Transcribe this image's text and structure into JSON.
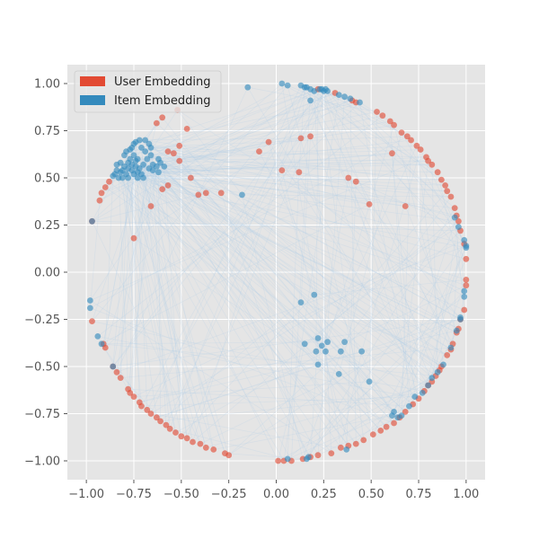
{
  "chart_data": {
    "type": "scatter",
    "title": "",
    "xlabel": "",
    "ylabel": "",
    "xlim": [
      -1.1,
      1.1
    ],
    "ylim": [
      -1.1,
      1.1
    ],
    "grid": true,
    "legend_position": "top-left",
    "x_ticks": [
      "−1.00",
      "−0.75",
      "−0.50",
      "−0.25",
      "0.00",
      "0.25",
      "0.50",
      "0.75",
      "1.00"
    ],
    "y_ticks": [
      "1.00",
      "0.75",
      "0.50",
      "0.25",
      "0.00",
      "−0.25",
      "−0.50",
      "−0.75",
      "−1.00"
    ],
    "x_tick_values": [
      -1.0,
      -0.75,
      -0.5,
      -0.25,
      0.0,
      0.25,
      0.5,
      0.75,
      1.0
    ],
    "y_tick_values": [
      1.0,
      0.75,
      0.5,
      0.25,
      0.0,
      -0.25,
      -0.5,
      -0.75,
      -1.0
    ],
    "colors": {
      "user": "#E24A33",
      "item": "#348ABD",
      "plot_bg": "#E5E5E5",
      "grid": "#FFFFFF",
      "link": "#AFCFE9"
    },
    "series": [
      {
        "name": "User Embedding",
        "points": [
          [
            -0.97,
            0.27
          ],
          [
            -0.92,
            0.42
          ],
          [
            -0.9,
            0.45
          ],
          [
            -0.88,
            0.48
          ],
          [
            -0.93,
            0.38
          ],
          [
            -0.75,
            0.18
          ],
          [
            -0.66,
            0.35
          ],
          [
            -0.6,
            0.44
          ],
          [
            -0.57,
            0.46
          ],
          [
            -0.51,
            0.59
          ],
          [
            -0.54,
            0.63
          ],
          [
            -0.57,
            0.64
          ],
          [
            -0.51,
            0.67
          ],
          [
            -0.6,
            0.82
          ],
          [
            -0.63,
            0.79
          ],
          [
            -0.52,
            0.86
          ],
          [
            -0.47,
            0.76
          ],
          [
            -0.45,
            0.5
          ],
          [
            -0.41,
            0.41
          ],
          [
            -0.37,
            0.42
          ],
          [
            -0.29,
            0.42
          ],
          [
            -0.09,
            0.64
          ],
          [
            -0.04,
            0.69
          ],
          [
            0.03,
            0.54
          ],
          [
            0.12,
            0.53
          ],
          [
            0.13,
            0.71
          ],
          [
            0.18,
            0.72
          ],
          [
            0.38,
            0.5
          ],
          [
            0.42,
            0.48
          ],
          [
            0.49,
            0.36
          ],
          [
            0.61,
            0.63
          ],
          [
            0.68,
            0.35
          ],
          [
            0.42,
            0.9
          ],
          [
            0.4,
            0.91
          ],
          [
            0.31,
            0.95
          ],
          [
            0.22,
            0.97
          ],
          [
            0.53,
            0.85
          ],
          [
            0.56,
            0.83
          ],
          [
            0.6,
            0.8
          ],
          [
            0.62,
            0.78
          ],
          [
            0.66,
            0.74
          ],
          [
            0.69,
            0.72
          ],
          [
            0.71,
            0.7
          ],
          [
            0.74,
            0.67
          ],
          [
            0.76,
            0.65
          ],
          [
            0.79,
            0.61
          ],
          [
            0.8,
            0.59
          ],
          [
            0.82,
            0.57
          ],
          [
            0.85,
            0.53
          ],
          [
            0.87,
            0.49
          ],
          [
            0.89,
            0.46
          ],
          [
            0.9,
            0.43
          ],
          [
            0.92,
            0.4
          ],
          [
            0.94,
            0.34
          ],
          [
            0.95,
            0.3
          ],
          [
            0.96,
            0.27
          ],
          [
            0.97,
            0.22
          ],
          [
            0.99,
            0.15
          ],
          [
            1.0,
            0.07
          ],
          [
            1.0,
            -0.04
          ],
          [
            1.0,
            -0.07
          ],
          [
            0.99,
            -0.2
          ],
          [
            0.97,
            -0.25
          ],
          [
            0.96,
            -0.3
          ],
          [
            0.95,
            -0.32
          ],
          [
            0.93,
            -0.38
          ],
          [
            0.92,
            -0.41
          ],
          [
            0.9,
            -0.44
          ],
          [
            0.87,
            -0.5
          ],
          [
            0.86,
            -0.52
          ],
          [
            0.84,
            -0.55
          ],
          [
            0.82,
            -0.58
          ],
          [
            0.8,
            -0.6
          ],
          [
            0.78,
            -0.63
          ],
          [
            0.75,
            -0.67
          ],
          [
            0.72,
            -0.7
          ],
          [
            0.68,
            -0.74
          ],
          [
            0.65,
            -0.77
          ],
          [
            0.62,
            -0.8
          ],
          [
            0.58,
            -0.82
          ],
          [
            0.55,
            -0.84
          ],
          [
            0.51,
            -0.86
          ],
          [
            0.46,
            -0.89
          ],
          [
            0.42,
            -0.91
          ],
          [
            0.38,
            -0.92
          ],
          [
            0.34,
            -0.93
          ],
          [
            0.29,
            -0.96
          ],
          [
            0.22,
            -0.97
          ],
          [
            0.18,
            -0.98
          ],
          [
            0.14,
            -0.99
          ],
          [
            0.08,
            -1.0
          ],
          [
            0.04,
            -1.0
          ],
          [
            0.01,
            -1.0
          ],
          [
            -0.25,
            -0.97
          ],
          [
            -0.27,
            -0.96
          ],
          [
            -0.33,
            -0.94
          ],
          [
            -0.37,
            -0.93
          ],
          [
            -0.4,
            -0.91
          ],
          [
            -0.44,
            -0.9
          ],
          [
            -0.47,
            -0.88
          ],
          [
            -0.5,
            -0.87
          ],
          [
            -0.53,
            -0.85
          ],
          [
            -0.56,
            -0.83
          ],
          [
            -0.58,
            -0.81
          ],
          [
            -0.61,
            -0.79
          ],
          [
            -0.63,
            -0.77
          ],
          [
            -0.66,
            -0.75
          ],
          [
            -0.68,
            -0.73
          ],
          [
            -0.71,
            -0.71
          ],
          [
            -0.72,
            -0.69
          ],
          [
            -0.75,
            -0.66
          ],
          [
            -0.77,
            -0.64
          ],
          [
            -0.78,
            -0.62
          ],
          [
            -0.82,
            -0.56
          ],
          [
            -0.84,
            -0.53
          ],
          [
            -0.86,
            -0.5
          ],
          [
            -0.9,
            -0.4
          ],
          [
            -0.91,
            -0.38
          ],
          [
            -0.97,
            -0.26
          ]
        ]
      },
      {
        "name": "Item Embedding",
        "points": [
          [
            -0.8,
            0.62
          ],
          [
            -0.79,
            0.64
          ],
          [
            -0.77,
            0.65
          ],
          [
            -0.76,
            0.66
          ],
          [
            -0.75,
            0.68
          ],
          [
            -0.74,
            0.69
          ],
          [
            -0.72,
            0.7
          ],
          [
            -0.82,
            0.58
          ],
          [
            -0.84,
            0.54
          ],
          [
            -0.85,
            0.52
          ],
          [
            -0.86,
            0.51
          ],
          [
            -0.83,
            0.5
          ],
          [
            -0.81,
            0.5
          ],
          [
            -0.79,
            0.52
          ],
          [
            -0.78,
            0.55
          ],
          [
            -0.76,
            0.57
          ],
          [
            -0.74,
            0.59
          ],
          [
            -0.73,
            0.6
          ],
          [
            -0.75,
            0.62
          ],
          [
            -0.77,
            0.6
          ],
          [
            -0.8,
            0.56
          ],
          [
            -0.82,
            0.53
          ],
          [
            -0.72,
            0.55
          ],
          [
            -0.7,
            0.57
          ],
          [
            -0.68,
            0.6
          ],
          [
            -0.66,
            0.62
          ],
          [
            -0.69,
            0.64
          ],
          [
            -0.71,
            0.66
          ],
          [
            -0.73,
            0.53
          ],
          [
            -0.75,
            0.52
          ],
          [
            -0.73,
            0.5
          ],
          [
            -0.71,
            0.52
          ],
          [
            -0.67,
            0.55
          ],
          [
            -0.65,
            0.57
          ],
          [
            -0.65,
            0.54
          ],
          [
            -0.66,
            0.66
          ],
          [
            -0.67,
            0.68
          ],
          [
            -0.69,
            0.7
          ],
          [
            -0.62,
            0.6
          ],
          [
            -0.61,
            0.58
          ],
          [
            -0.63,
            0.56
          ],
          [
            -0.62,
            0.53
          ],
          [
            -0.59,
            0.56
          ],
          [
            -0.78,
            0.5
          ],
          [
            -0.7,
            0.5
          ],
          [
            -0.76,
            0.54
          ],
          [
            -0.74,
            0.56
          ],
          [
            -0.78,
            0.58
          ],
          [
            -0.81,
            0.54
          ],
          [
            -0.84,
            0.57
          ],
          [
            -0.97,
            0.27
          ],
          [
            -0.18,
            0.41
          ],
          [
            0.03,
            1.0
          ],
          [
            0.06,
            0.99
          ],
          [
            -0.15,
            0.98
          ],
          [
            0.13,
            0.99
          ],
          [
            0.15,
            0.98
          ],
          [
            0.16,
            0.98
          ],
          [
            0.18,
            0.97
          ],
          [
            0.2,
            0.96
          ],
          [
            0.23,
            0.97
          ],
          [
            0.24,
            0.97
          ],
          [
            0.25,
            0.96
          ],
          [
            0.26,
            0.97
          ],
          [
            0.27,
            0.96
          ],
          [
            0.33,
            0.94
          ],
          [
            0.36,
            0.93
          ],
          [
            0.39,
            0.92
          ],
          [
            0.44,
            0.9
          ],
          [
            0.18,
            0.91
          ],
          [
            0.13,
            -0.16
          ],
          [
            0.2,
            -0.12
          ],
          [
            0.15,
            -0.38
          ],
          [
            0.22,
            -0.35
          ],
          [
            0.24,
            -0.39
          ],
          [
            0.27,
            -0.37
          ],
          [
            0.21,
            -0.42
          ],
          [
            0.22,
            -0.49
          ],
          [
            0.26,
            -0.42
          ],
          [
            0.34,
            -0.42
          ],
          [
            0.36,
            -0.37
          ],
          [
            0.45,
            -0.42
          ],
          [
            0.33,
            -0.54
          ],
          [
            0.49,
            -0.58
          ],
          [
            0.37,
            -0.94
          ],
          [
            0.06,
            -0.99
          ],
          [
            0.16,
            -0.99
          ],
          [
            0.17,
            -0.98
          ],
          [
            -0.98,
            -0.15
          ],
          [
            -0.98,
            -0.19
          ],
          [
            -0.94,
            -0.34
          ],
          [
            -0.92,
            -0.38
          ],
          [
            -0.86,
            -0.5
          ],
          [
            0.61,
            -0.76
          ],
          [
            0.62,
            -0.74
          ],
          [
            0.64,
            -0.77
          ],
          [
            0.66,
            -0.76
          ],
          [
            0.7,
            -0.71
          ],
          [
            0.73,
            -0.66
          ],
          [
            0.77,
            -0.64
          ],
          [
            0.8,
            -0.6
          ],
          [
            0.82,
            -0.56
          ],
          [
            0.85,
            -0.53
          ],
          [
            0.88,
            -0.49
          ],
          [
            0.92,
            -0.4
          ],
          [
            0.95,
            -0.31
          ],
          [
            0.97,
            -0.25
          ],
          [
            0.97,
            -0.24
          ],
          [
            0.99,
            -0.13
          ],
          [
            0.99,
            -0.1
          ],
          [
            1.0,
            0.13
          ],
          [
            1.0,
            0.14
          ],
          [
            0.99,
            0.17
          ],
          [
            0.96,
            0.24
          ],
          [
            0.94,
            0.29
          ]
        ]
      }
    ]
  }
}
